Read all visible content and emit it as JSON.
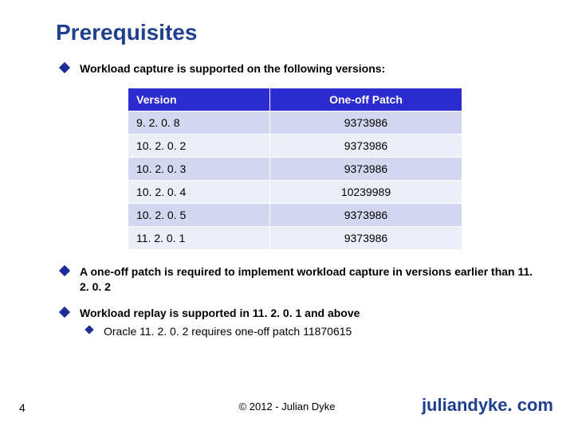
{
  "title": "Prerequisites",
  "bullets": {
    "b0": "Workload capture is supported on the following versions:",
    "b1": "A one-off patch is required to implement workload capture in versions earlier than 11. 2. 0. 2",
    "b2": "Workload replay is supported in 11. 2. 0. 1 and above",
    "b2sub": "Oracle 11. 2. 0. 2 requires one-off patch 11870615"
  },
  "table": {
    "header_bg": "#2b2bd0",
    "row_odd_bg": "#d4d7f0",
    "row_even_bg": "#eceef8",
    "columns": [
      "Version",
      "One-off Patch"
    ],
    "rows": [
      [
        "9. 2. 0. 8",
        "9373986"
      ],
      [
        "10. 2. 0. 2",
        "9373986"
      ],
      [
        "10. 2. 0. 3",
        "9373986"
      ],
      [
        "10. 2. 0. 4",
        "10239989"
      ],
      [
        "10. 2. 0. 5",
        "9373986"
      ],
      [
        "11. 2. 0. 1",
        "9373986"
      ]
    ]
  },
  "footer": {
    "page": "4",
    "copyright": "© 2012 - Julian Dyke",
    "site": "juliandyke. com"
  }
}
